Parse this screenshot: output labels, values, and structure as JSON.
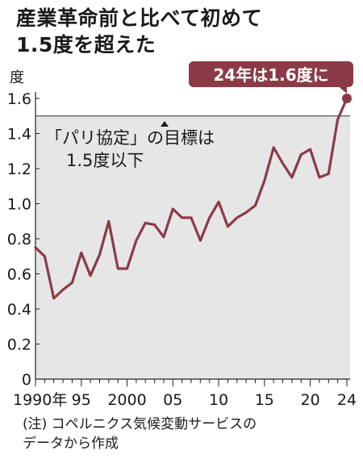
{
  "title_line1": "産業革命前と比べて初めて",
  "title_line2": "1.5度を超えた",
  "note_line1": "(注) コペルニクス気候変動サービスの",
  "note_line2": "データから作成",
  "callout_text": "24年は1.6度に",
  "band_label_line1": "「パリ協定」の目標は",
  "band_label_line2": "1.5度以下",
  "colors": {
    "line": "#8c3b46",
    "band": "#e6e6e6",
    "callout": "#8c3b46"
  },
  "chart_data": {
    "type": "line",
    "title": "産業革命前と比べて初めて1.5度を超えた",
    "ylabel": "度",
    "xlabel": "",
    "ylim": [
      0,
      1.6
    ],
    "xlim": [
      1990,
      2024
    ],
    "yticks": [
      0,
      0.2,
      0.4,
      0.6,
      0.8,
      1.0,
      1.2,
      1.4,
      1.6
    ],
    "ytick_labels": [
      "0",
      "0.2",
      "0.4",
      "0.6",
      "0.8",
      "1.0",
      "1.2",
      "1.4",
      "1.6"
    ],
    "xticks": [
      1990,
      1995,
      2000,
      2005,
      2010,
      2015,
      2020,
      2024
    ],
    "xtick_labels": [
      "1990年",
      "95",
      "2000",
      "05",
      "10",
      "15",
      "20",
      "24"
    ],
    "target_band": {
      "from": 0,
      "to": 1.5,
      "label": "「パリ協定」の目標は1.5度以下"
    },
    "x": [
      1990,
      1991,
      1992,
      1993,
      1994,
      1995,
      1996,
      1997,
      1998,
      1999,
      2000,
      2001,
      2002,
      2003,
      2004,
      2005,
      2006,
      2007,
      2008,
      2009,
      2010,
      2011,
      2012,
      2013,
      2014,
      2015,
      2016,
      2017,
      2018,
      2019,
      2020,
      2021,
      2022,
      2023,
      2024
    ],
    "y": [
      0.75,
      0.7,
      0.46,
      0.51,
      0.55,
      0.72,
      0.59,
      0.71,
      0.9,
      0.63,
      0.63,
      0.79,
      0.89,
      0.88,
      0.81,
      0.97,
      0.92,
      0.92,
      0.79,
      0.92,
      1.01,
      0.87,
      0.92,
      0.95,
      0.99,
      1.13,
      1.32,
      1.23,
      1.15,
      1.28,
      1.31,
      1.15,
      1.17,
      1.48,
      1.6
    ],
    "series": [
      {
        "values_ref": "y"
      }
    ],
    "annotation": {
      "x": 2024,
      "y": 1.6,
      "text": "24年は1.6度に"
    }
  }
}
